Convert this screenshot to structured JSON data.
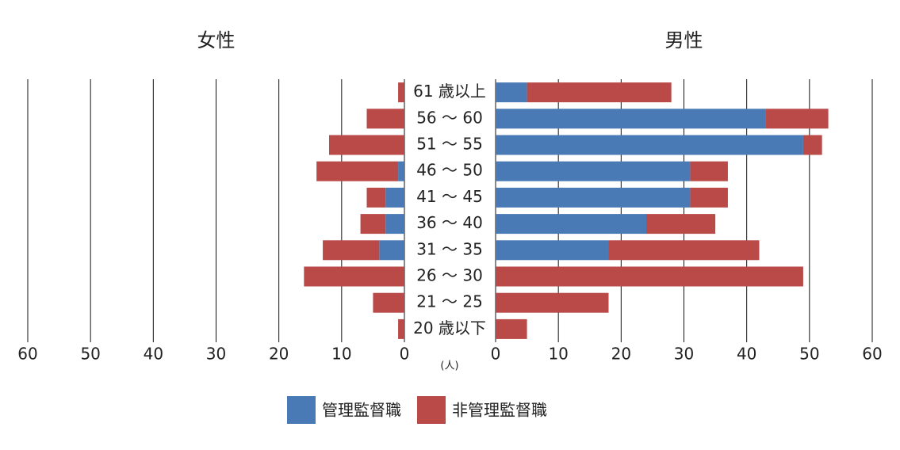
{
  "chart_data": {
    "type": "bar",
    "orientation": "horizontal",
    "categories": [
      "61 歳以上",
      "56 ～ 60",
      "51 ～ 55",
      "46 ～ 50",
      "41 ～ 45",
      "36 ～ 40",
      "31 ～ 35",
      "26 ～ 30",
      "21 ～ 25",
      "20 歳以下"
    ],
    "x_label": "(人)",
    "panels": [
      {
        "title": "女性",
        "direction": "left",
        "xlim": [
          0,
          60
        ],
        "xticks": [
          0,
          10,
          20,
          30,
          40,
          50,
          60
        ],
        "grid": true,
        "series": [
          {
            "name": "管理監督職",
            "color": "#4a7ab5",
            "values": [
              0,
              0,
              0,
              1,
              3,
              3,
              4,
              0,
              0,
              0
            ]
          },
          {
            "name": "非管理監督職",
            "color": "#b94a48",
            "values": [
              1,
              6,
              12,
              13,
              3,
              4,
              9,
              16,
              5,
              1
            ]
          }
        ]
      },
      {
        "title": "男性",
        "direction": "right",
        "xlim": [
          0,
          60
        ],
        "xticks": [
          0,
          10,
          20,
          30,
          40,
          50,
          60
        ],
        "grid": true,
        "series": [
          {
            "name": "管理監督職",
            "color": "#4a7ab5",
            "values": [
              5,
              43,
              49,
              31,
              31,
              24,
              18,
              0,
              0,
              0
            ]
          },
          {
            "name": "非管理監督職",
            "color": "#b94a48",
            "values": [
              23,
              10,
              3,
              6,
              6,
              11,
              24,
              49,
              18,
              5
            ]
          }
        ]
      }
    ]
  }
}
